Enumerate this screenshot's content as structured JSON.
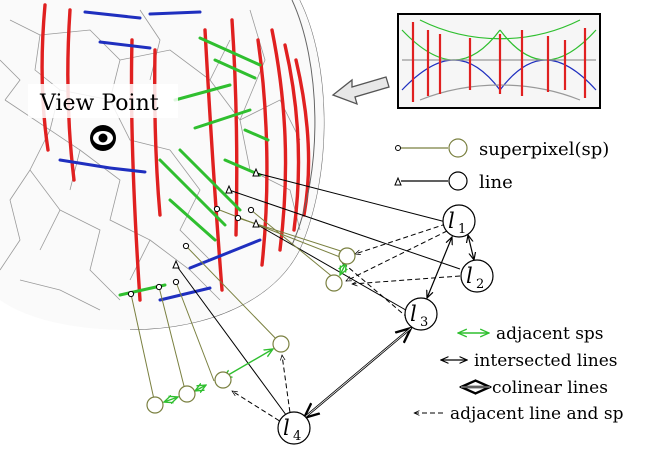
{
  "view_point_label": "View Point",
  "legend": {
    "superpixel": "superpixel(sp)",
    "line": "line"
  },
  "nodes": {
    "l1": "1",
    "l2": "2",
    "l3": "3",
    "l4": "4",
    "letter": "l"
  },
  "edge_legend": {
    "adjacent_sps": "adjacent sps",
    "intersected_lines": "intersected lines",
    "colinear_lines": "colinear lines",
    "adjacent_line_sp": "adjacent line and sp"
  },
  "colors": {
    "red": "#e02020",
    "green": "#2fbf2f",
    "blue": "#1f2fbf",
    "olive": "#7a8040",
    "adjacent_arrow": "#2fbf2f"
  },
  "icons": {
    "eye": "eye-icon",
    "arrow": "big-left-arrow-icon"
  }
}
